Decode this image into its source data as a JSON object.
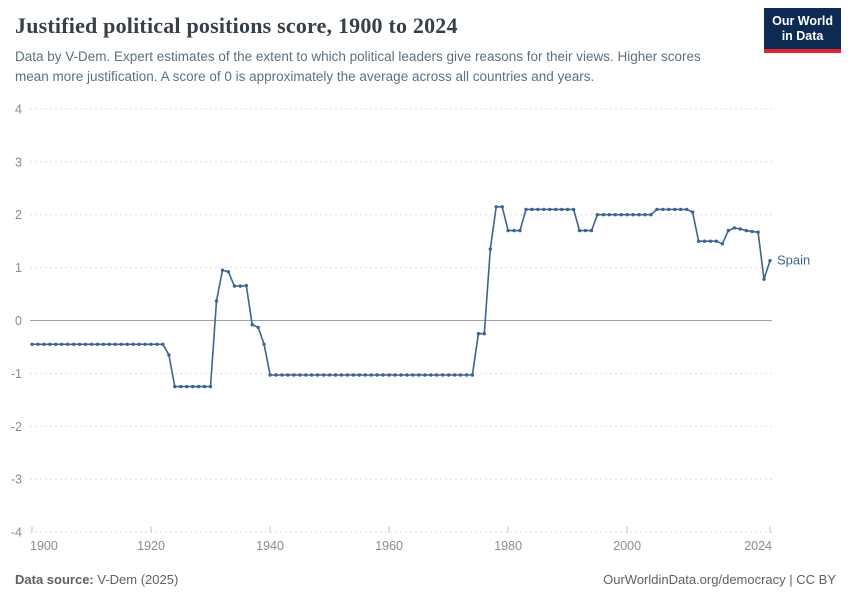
{
  "header": {
    "title": "Justified political positions score, 1900 to 2024",
    "subtitle": "Data by V-Dem. Expert estimates of the extent to which political leaders give reasons for their views. Higher scores mean more justification. A score of 0 is approximately the average across all countries and years.",
    "logo": {
      "line1": "Our World",
      "line2": "in Data",
      "bg_color": "#0d2b52",
      "bar_color": "#e0252f"
    }
  },
  "chart_data": {
    "type": "line",
    "title": "Justified political positions score, 1900 to 2024",
    "xlabel": "",
    "ylabel": "",
    "xlim": [
      1900,
      2024
    ],
    "ylim": [
      -4,
      4
    ],
    "x_ticks": [
      1900,
      1920,
      1940,
      1960,
      1980,
      2000,
      2024
    ],
    "y_ticks": [
      4,
      3,
      2,
      1,
      0,
      -1,
      -2,
      -3,
      -4
    ],
    "grid": "dashed horizontal gridlines, solid zero line",
    "legend_position": "end-of-line label",
    "style": {
      "line_color": "#3d6491",
      "grid_color": "#dddddd",
      "zero_line_color": "#a3a3a3",
      "axis_text_color": "#8c8c8c",
      "tick_color": "#bcbcbc",
      "marker_radius": 1.7,
      "line_width": 1.6
    },
    "x_start": 1900,
    "x_step": 1,
    "series": [
      {
        "name": "Spain",
        "color": "#3d6491",
        "values": [
          -0.45,
          -0.45,
          -0.45,
          -0.45,
          -0.45,
          -0.45,
          -0.45,
          -0.45,
          -0.45,
          -0.45,
          -0.45,
          -0.45,
          -0.45,
          -0.45,
          -0.45,
          -0.45,
          -0.45,
          -0.45,
          -0.45,
          -0.45,
          -0.45,
          -0.45,
          -0.45,
          -0.65,
          -1.25,
          -1.25,
          -1.25,
          -1.25,
          -1.25,
          -1.25,
          -1.25,
          0.37,
          0.95,
          0.92,
          0.65,
          0.65,
          0.66,
          -0.08,
          -0.13,
          -0.45,
          -1.03,
          -1.03,
          -1.03,
          -1.03,
          -1.03,
          -1.03,
          -1.03,
          -1.03,
          -1.03,
          -1.03,
          -1.03,
          -1.03,
          -1.03,
          -1.03,
          -1.03,
          -1.03,
          -1.03,
          -1.03,
          -1.03,
          -1.03,
          -1.03,
          -1.03,
          -1.03,
          -1.03,
          -1.03,
          -1.03,
          -1.03,
          -1.03,
          -1.03,
          -1.03,
          -1.03,
          -1.03,
          -1.03,
          -1.03,
          -1.03,
          -0.25,
          -0.25,
          1.35,
          2.15,
          2.15,
          1.7,
          1.7,
          1.7,
          2.1,
          2.1,
          2.1,
          2.1,
          2.1,
          2.1,
          2.1,
          2.1,
          2.1,
          1.7,
          1.7,
          1.7,
          2.0,
          2.0,
          2.0,
          2.0,
          2.0,
          2.0,
          2.0,
          2.0,
          2.0,
          2.0,
          2.1,
          2.1,
          2.1,
          2.1,
          2.1,
          2.1,
          2.05,
          1.5,
          1.5,
          1.5,
          1.5,
          1.45,
          1.7,
          1.75,
          1.73,
          1.7,
          1.68,
          1.67,
          0.78,
          1.13
        ]
      }
    ],
    "end_label": "Spain"
  },
  "footer": {
    "source_label": "Data source:",
    "source_value": " V-Dem (2025)",
    "right_text": "OurWorldinData.org/democracy | CC BY"
  }
}
